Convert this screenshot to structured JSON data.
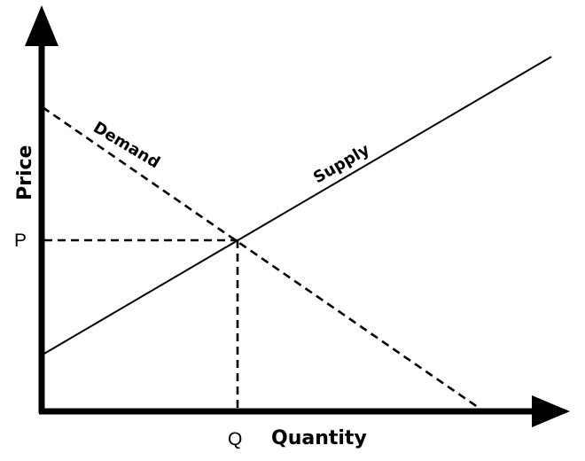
{
  "axes": {
    "x_label": "Quantity",
    "y_label": "Price"
  },
  "equilibrium": {
    "price_label": "P",
    "quantity_label": "Q"
  },
  "curves": {
    "demand_label": "Demand",
    "supply_label": "Supply"
  },
  "colors": {
    "ink": "#000000",
    "background": "#ffffff"
  }
}
